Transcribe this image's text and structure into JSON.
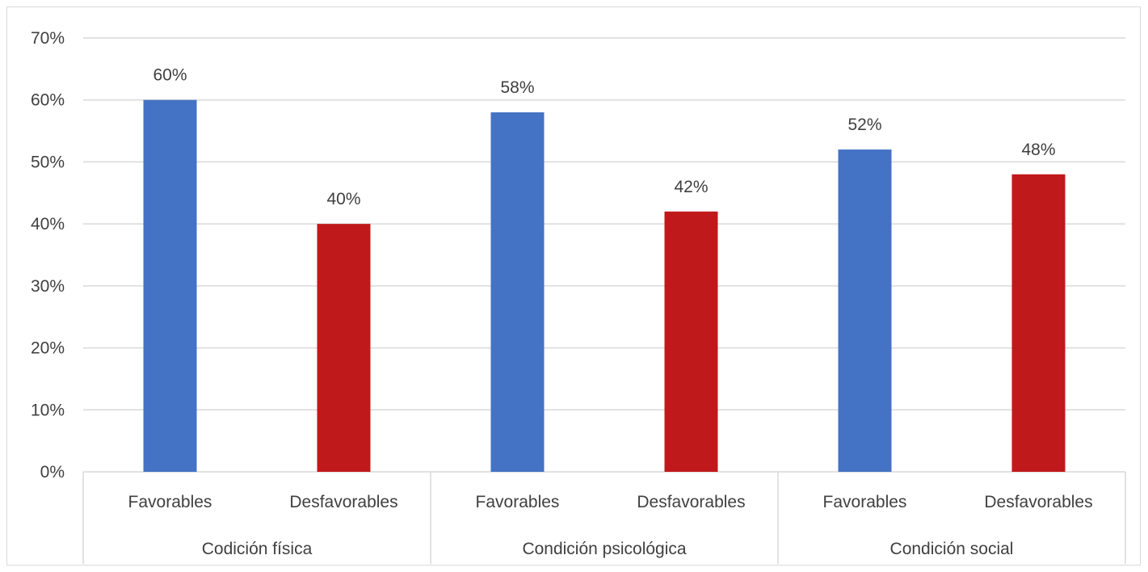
{
  "chart_data": {
    "type": "bar",
    "title": "",
    "xlabel": "",
    "ylabel": "",
    "ylim": [
      0,
      0.7
    ],
    "y_ticks": [
      0,
      0.1,
      0.2,
      0.3,
      0.4,
      0.5,
      0.6,
      0.7
    ],
    "y_tick_labels": [
      "0%",
      "10%",
      "20%",
      "30%",
      "40%",
      "50%",
      "60%",
      "70%"
    ],
    "grid": true,
    "legend": "none",
    "groups": [
      {
        "label": "Codición física",
        "bars": [
          {
            "category": "Favorables",
            "value": 0.6,
            "label": "60%",
            "color": "#4472c4"
          },
          {
            "category": "Desfavorables",
            "value": 0.4,
            "label": "40%",
            "color": "#c0191b"
          }
        ]
      },
      {
        "label": "Condición psicológica",
        "bars": [
          {
            "category": "Favorables",
            "value": 0.58,
            "label": "58%",
            "color": "#4472c4"
          },
          {
            "category": "Desfavorables",
            "value": 0.42,
            "label": "42%",
            "color": "#c0191b"
          }
        ]
      },
      {
        "label": "Condición social",
        "bars": [
          {
            "category": "Favorables",
            "value": 0.52,
            "label": "52%",
            "color": "#4472c4"
          },
          {
            "category": "Desfavorables",
            "value": 0.48,
            "label": "48%",
            "color": "#c0191b"
          }
        ]
      }
    ],
    "colors": {
      "favorables": "#4472c4",
      "desfavorables": "#c0191b",
      "grid": "#d9d9d9",
      "text": "#404040"
    }
  }
}
